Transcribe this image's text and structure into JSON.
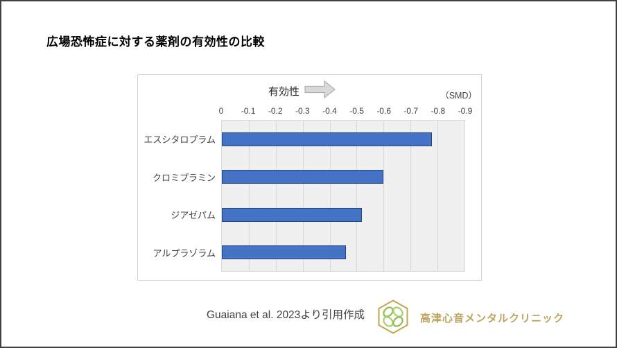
{
  "page": {
    "title": "広場恐怖症に対する薬剤の有効性の比較"
  },
  "chart": {
    "effect_label": "有効性",
    "unit_label": "（SMD）"
  },
  "chart_data": {
    "type": "bar",
    "orientation": "horizontal",
    "title": "広場恐怖症に対する薬剤の有効性の比較",
    "categories": [
      "エスシタロプラム",
      "クロミプラミン",
      "ジアゼパム",
      "アルプラゾラム"
    ],
    "values": [
      -0.78,
      -0.6,
      -0.52,
      -0.46
    ],
    "xlabel": "（SMD）",
    "ylabel": "",
    "xlim": [
      0,
      -0.9
    ],
    "ticks": [
      "0",
      "-0.1",
      "-0.2",
      "-0.3",
      "-0.4",
      "-0.5",
      "-0.6",
      "-0.7",
      "-0.8",
      "-0.9"
    ],
    "grid": true,
    "legend": false,
    "bar_color": "#4472c4",
    "bar_border_color": "#24457e",
    "plot_bg": "#f0f0f0",
    "gridline_color": "#d9d9d9"
  },
  "footer": {
    "source": "Guaiana et al. 2023より引用作成",
    "clinic_name": "高津心音メンタルクリニック",
    "clinic_color": "#bba45e",
    "logo_icon": "clover-hexagon"
  }
}
